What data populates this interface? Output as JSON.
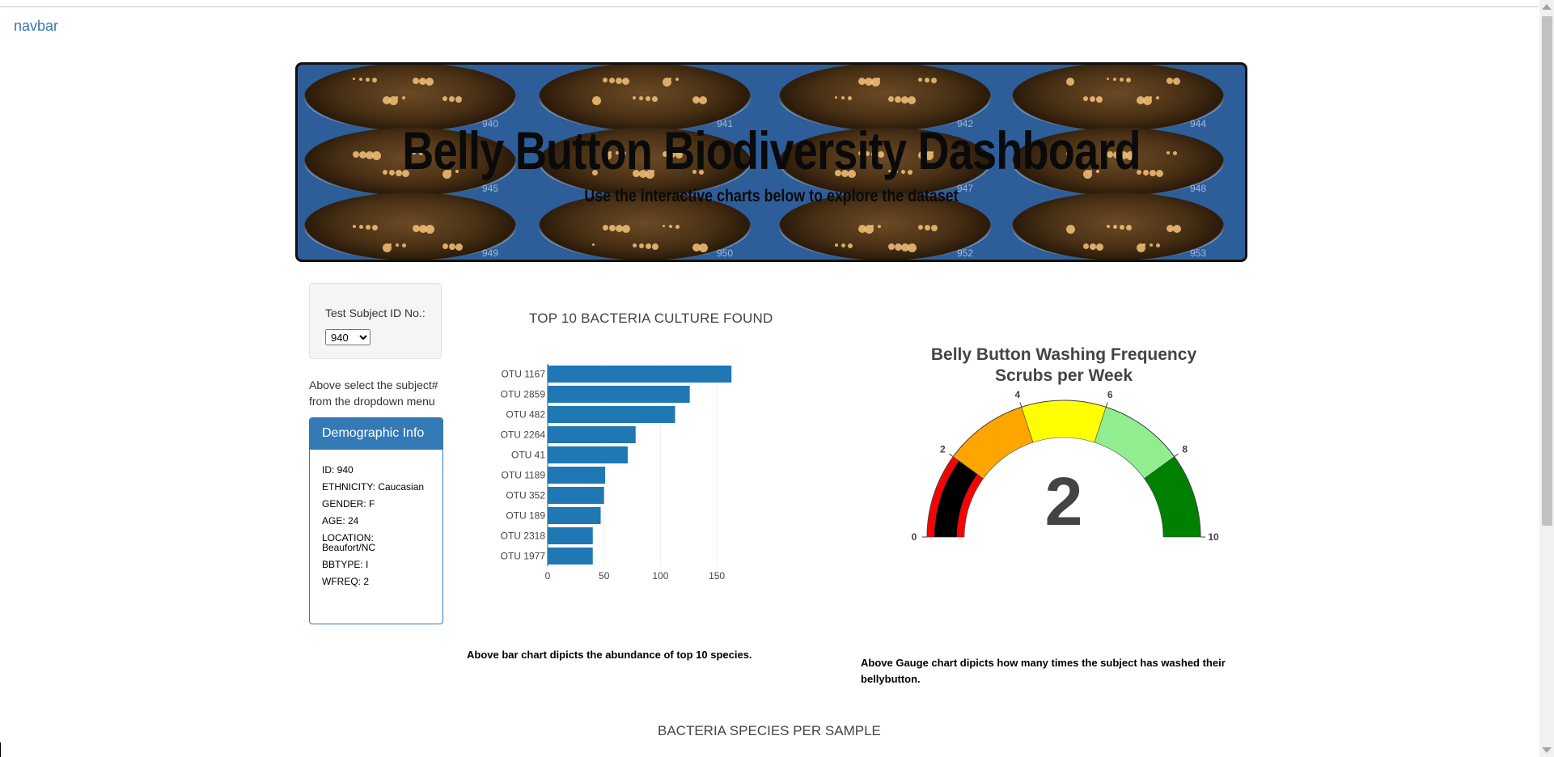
{
  "navbar": {
    "label": "navbar"
  },
  "hero": {
    "title": "Belly Button Biodiversity Dashboard",
    "subtitle": "Use the interactive charts below to explore the dataset",
    "dish_numbers": [
      "940",
      "941",
      "942",
      "944",
      "945",
      "947",
      "948",
      "949",
      "950",
      "952",
      "953"
    ]
  },
  "selector": {
    "label": "Test Subject ID No.:",
    "selected": "940",
    "hint": "Above select the subject# from the dropdown menu"
  },
  "demographics": {
    "heading": "Demographic Info",
    "rows": [
      "ID: 940",
      "ETHNICITY: Caucasian",
      "GENDER: F",
      "AGE: 24",
      "LOCATION: Beaufort/NC",
      "BBTYPE: I",
      "WFREQ: 2"
    ]
  },
  "bar_section": {
    "title": "TOP 10 BACTERIA CULTURE FOUND",
    "caption": "Above bar chart dipicts the abundance of top 10 species."
  },
  "gauge_section": {
    "title_line1": "Belly Button Washing Frequency",
    "title_line2": "Scrubs per Week",
    "value_label": "2",
    "caption": "Above Gauge chart dipicts how many times the subject has washed their bellybutton."
  },
  "species_section": {
    "title": "BACTERIA SPECIES PER SAMPLE"
  },
  "colors": {
    "bar": "#1f77b4",
    "panel_primary": "#337ab7",
    "gauge_steps": [
      "#ff0000",
      "#ffa500",
      "#ffff00",
      "#90ee90",
      "#008000"
    ],
    "gauge_needle": "#000000"
  },
  "chart_data": [
    {
      "type": "bar",
      "orientation": "horizontal",
      "title": "TOP 10 BACTERIA CULTURE FOUND",
      "categories": [
        "OTU 1167",
        "OTU 2859",
        "OTU 482",
        "OTU 2264",
        "OTU 41",
        "OTU 1189",
        "OTU 352",
        "OTU 189",
        "OTU 2318",
        "OTU 1977"
      ],
      "values": [
        163,
        126,
        113,
        78,
        71,
        51,
        50,
        47,
        40,
        40
      ],
      "xlim": [
        0,
        165
      ],
      "xticks": [
        0,
        50,
        100,
        150
      ],
      "grid": true
    },
    {
      "type": "gauge",
      "title": "Belly Button Washing Frequency Scrubs per Week",
      "value": 2,
      "range": [
        0,
        10
      ],
      "ticks": [
        0,
        2,
        4,
        6,
        8,
        10
      ],
      "steps": [
        [
          0,
          2
        ],
        [
          2,
          4
        ],
        [
          4,
          6
        ],
        [
          6,
          8
        ],
        [
          8,
          10
        ]
      ]
    }
  ]
}
